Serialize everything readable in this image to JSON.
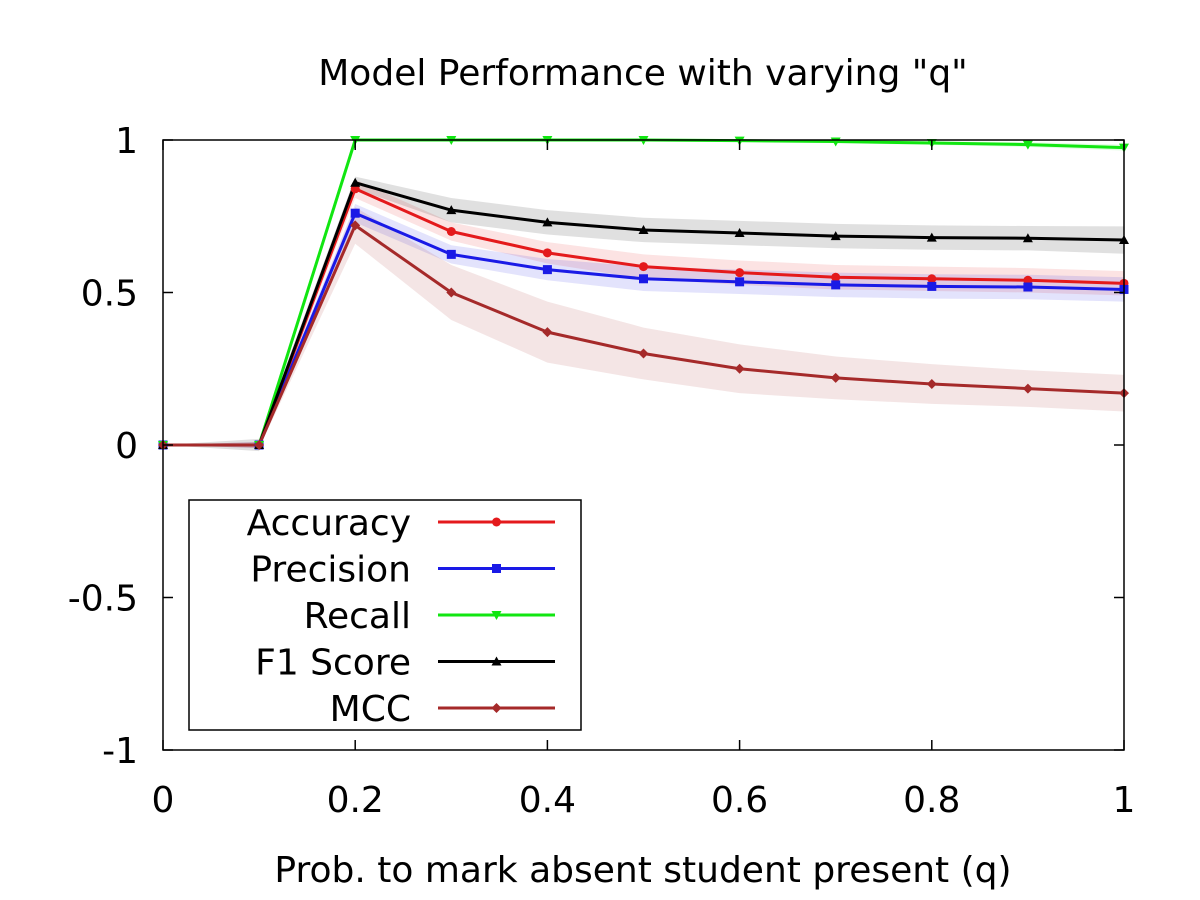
{
  "chart_data": {
    "type": "line",
    "title": "Model Performance with varying \"q\"",
    "xlabel": "Prob. to mark absent student present (q)",
    "ylabel": "",
    "xlim": [
      0,
      1
    ],
    "ylim": [
      -1,
      1
    ],
    "x_ticks": [
      0,
      0.2,
      0.4,
      0.6,
      0.8,
      1
    ],
    "x_tick_labels": [
      "0",
      "0.2",
      "0.4",
      "0.6",
      "0.8",
      "1"
    ],
    "y_ticks": [
      -1,
      -0.5,
      0,
      0.5,
      1
    ],
    "y_tick_labels": [
      "-1",
      "-0.5",
      "0",
      "0.5",
      "1"
    ],
    "grid": false,
    "legend_position": "bottom-left",
    "x": [
      0,
      0.1,
      0.2,
      0.3,
      0.4,
      0.5,
      0.6,
      0.7,
      0.8,
      0.9,
      1.0
    ],
    "series": [
      {
        "name": "Accuracy",
        "color": "#e41a1c",
        "marker": "circle",
        "values": [
          0,
          0,
          0.84,
          0.7,
          0.63,
          0.585,
          0.565,
          0.55,
          0.545,
          0.54,
          0.53
        ],
        "band": [
          0,
          0.01,
          0.03,
          0.03,
          0.035,
          0.04,
          0.04,
          0.04,
          0.04,
          0.04,
          0.04
        ]
      },
      {
        "name": "Precision",
        "color": "#1a1ae6",
        "marker": "square",
        "values": [
          0,
          0,
          0.76,
          0.625,
          0.575,
          0.545,
          0.535,
          0.525,
          0.52,
          0.518,
          0.51
        ],
        "band": [
          0,
          0.01,
          0.03,
          0.03,
          0.035,
          0.04,
          0.04,
          0.04,
          0.04,
          0.04,
          0.04
        ]
      },
      {
        "name": "Recall",
        "color": "#11e611",
        "marker": "triangle-down",
        "values": [
          0,
          0,
          1.0,
          1.0,
          1.0,
          1.0,
          0.998,
          0.995,
          0.99,
          0.985,
          0.975
        ],
        "band": [
          0,
          0,
          0,
          0,
          0,
          0,
          0.003,
          0.005,
          0.006,
          0.008,
          0.01
        ]
      },
      {
        "name": "F1 Score",
        "color": "#000000",
        "marker": "triangle-up",
        "values": [
          0,
          0,
          0.86,
          0.77,
          0.73,
          0.705,
          0.695,
          0.685,
          0.68,
          0.678,
          0.672
        ],
        "band": [
          0,
          0.02,
          0.02,
          0.04,
          0.04,
          0.04,
          0.04,
          0.04,
          0.04,
          0.04,
          0.045
        ]
      },
      {
        "name": "MCC",
        "color": "#a52a2a",
        "marker": "diamond",
        "values": [
          0,
          0,
          0.72,
          0.5,
          0.37,
          0.3,
          0.25,
          0.22,
          0.2,
          0.185,
          0.17
        ],
        "band": [
          0,
          0.01,
          0.06,
          0.09,
          0.1,
          0.085,
          0.08,
          0.07,
          0.065,
          0.06,
          0.06
        ]
      }
    ]
  }
}
